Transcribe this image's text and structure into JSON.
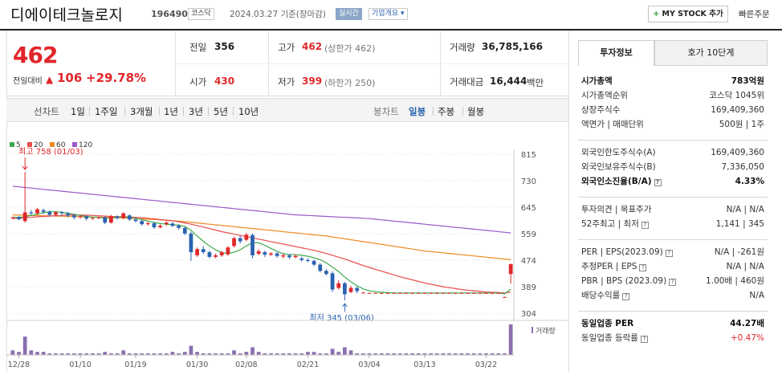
{
  "header": {
    "stock_name": "디에이테크놀로지",
    "stock_code": "196490",
    "market": "코스닥",
    "date": "2024.03.27 기준(장마감)",
    "realtime_label": "실시간",
    "company_overview_label": "기업개요",
    "mystock_label": "MY STOCK 추가",
    "quick_order_label": "빠른주문"
  },
  "price": {
    "current": "462",
    "change_label": "전일대비",
    "change_amount": "106",
    "change_rate": "+29.78%"
  },
  "quotes": {
    "prev_close_label": "전일",
    "prev_close": "356",
    "high_label": "고가",
    "high": "462",
    "high_note": "(상한가 462)",
    "volume_label": "거래량",
    "volume": "36,785,166",
    "open_label": "시가",
    "open": "430",
    "low_label": "저가",
    "low": "399",
    "low_note": "(하한가 250)",
    "amount_label": "거래대금",
    "amount": "16,444",
    "amount_unit": "백만"
  },
  "period_tabs": {
    "line_chart": "선차트",
    "items": [
      "1일",
      "1주일",
      "3개월",
      "1년",
      "3년",
      "5년",
      "10년"
    ],
    "candle_chart": "봉차트",
    "candle_items": [
      "일봉",
      "주봉",
      "월봉"
    ],
    "active_candle": "일봉"
  },
  "chart_data": {
    "type": "candlestick",
    "legend": [
      "5",
      "20",
      "60",
      "120"
    ],
    "legend_colors": [
      "#3aa84a",
      "#e84c4c",
      "#f08a24",
      "#9b59c6"
    ],
    "y_ticks": [
      815,
      730,
      645,
      559,
      474,
      389,
      304
    ],
    "ylim": [
      304,
      815
    ],
    "x_ticks": [
      "12/28",
      "01/10",
      "01/19",
      "01/30",
      "02/08",
      "02/21",
      "03/04",
      "03/13",
      "03/22"
    ],
    "high_annotation": "최고 758 (01/03)",
    "low_annotation": "최저 345 (03/06)",
    "volume_label": "거래량",
    "candles": [
      {
        "o": 610,
        "c": 612,
        "h": 614,
        "l": 605
      },
      {
        "o": 612,
        "c": 606,
        "h": 616,
        "l": 603
      },
      {
        "o": 600,
        "c": 628,
        "h": 758,
        "l": 595
      },
      {
        "o": 628,
        "c": 625,
        "h": 635,
        "l": 618
      },
      {
        "o": 625,
        "c": 638,
        "h": 642,
        "l": 620
      },
      {
        "o": 635,
        "c": 630,
        "h": 640,
        "l": 622
      },
      {
        "o": 630,
        "c": 620,
        "h": 634,
        "l": 615
      },
      {
        "o": 620,
        "c": 628,
        "h": 632,
        "l": 615
      },
      {
        "o": 628,
        "c": 625,
        "h": 633,
        "l": 618
      },
      {
        "o": 625,
        "c": 618,
        "h": 630,
        "l": 612
      },
      {
        "o": 618,
        "c": 612,
        "h": 622,
        "l": 605
      },
      {
        "o": 612,
        "c": 615,
        "h": 620,
        "l": 608
      },
      {
        "o": 615,
        "c": 608,
        "h": 618,
        "l": 602
      },
      {
        "o": 608,
        "c": 610,
        "h": 613,
        "l": 604
      },
      {
        "o": 610,
        "c": 612,
        "h": 615,
        "l": 606
      },
      {
        "o": 612,
        "c": 595,
        "h": 616,
        "l": 590
      },
      {
        "o": 595,
        "c": 615,
        "h": 620,
        "l": 592
      },
      {
        "o": 615,
        "c": 610,
        "h": 618,
        "l": 605
      },
      {
        "o": 610,
        "c": 625,
        "h": 628,
        "l": 605
      },
      {
        "o": 618,
        "c": 605,
        "h": 622,
        "l": 600
      },
      {
        "o": 605,
        "c": 600,
        "h": 610,
        "l": 596
      },
      {
        "o": 600,
        "c": 590,
        "h": 604,
        "l": 585
      },
      {
        "o": 590,
        "c": 593,
        "h": 598,
        "l": 585
      },
      {
        "o": 593,
        "c": 580,
        "h": 597,
        "l": 575
      },
      {
        "o": 580,
        "c": 585,
        "h": 590,
        "l": 576
      },
      {
        "o": 590,
        "c": 595,
        "h": 600,
        "l": 585
      },
      {
        "o": 592,
        "c": 585,
        "h": 597,
        "l": 580
      },
      {
        "o": 585,
        "c": 578,
        "h": 590,
        "l": 572
      },
      {
        "o": 578,
        "c": 560,
        "h": 582,
        "l": 555
      },
      {
        "o": 560,
        "c": 500,
        "h": 565,
        "l": 472
      },
      {
        "o": 490,
        "c": 510,
        "h": 515,
        "l": 485
      },
      {
        "o": 510,
        "c": 500,
        "h": 520,
        "l": 495
      },
      {
        "o": 500,
        "c": 485,
        "h": 505,
        "l": 480
      },
      {
        "o": 485,
        "c": 490,
        "h": 495,
        "l": 480
      },
      {
        "o": 490,
        "c": 500,
        "h": 505,
        "l": 485
      },
      {
        "o": 493,
        "c": 515,
        "h": 520,
        "l": 488
      },
      {
        "o": 520,
        "c": 545,
        "h": 550,
        "l": 515
      },
      {
        "o": 545,
        "c": 535,
        "h": 552,
        "l": 528
      },
      {
        "o": 540,
        "c": 556,
        "h": 562,
        "l": 535
      },
      {
        "o": 555,
        "c": 490,
        "h": 560,
        "l": 480
      },
      {
        "o": 495,
        "c": 503,
        "h": 510,
        "l": 490
      },
      {
        "o": 500,
        "c": 492,
        "h": 505,
        "l": 485
      },
      {
        "o": 492,
        "c": 496,
        "h": 500,
        "l": 488
      },
      {
        "o": 496,
        "c": 488,
        "h": 500,
        "l": 482
      },
      {
        "o": 486,
        "c": 490,
        "h": 495,
        "l": 480
      },
      {
        "o": 490,
        "c": 484,
        "h": 494,
        "l": 478
      },
      {
        "o": 484,
        "c": 488,
        "h": 492,
        "l": 480
      },
      {
        "o": 480,
        "c": 475,
        "h": 486,
        "l": 470
      },
      {
        "o": 475,
        "c": 472,
        "h": 480,
        "l": 468
      },
      {
        "o": 472,
        "c": 460,
        "h": 476,
        "l": 455
      },
      {
        "o": 460,
        "c": 440,
        "h": 465,
        "l": 435
      },
      {
        "o": 440,
        "c": 430,
        "h": 445,
        "l": 425
      },
      {
        "o": 432,
        "c": 380,
        "h": 438,
        "l": 372
      },
      {
        "o": 385,
        "c": 400,
        "h": 410,
        "l": 380
      },
      {
        "o": 400,
        "c": 365,
        "h": 405,
        "l": 345
      },
      {
        "o": 372,
        "c": 385,
        "h": 392,
        "l": 368
      },
      {
        "o": 385,
        "c": 375,
        "h": 390,
        "l": 368
      },
      {
        "o": 370,
        "c": 370,
        "h": 372,
        "l": 368
      },
      {
        "o": 369,
        "c": 369,
        "h": 370,
        "l": 368
      },
      {
        "o": 369,
        "c": 369,
        "h": 370,
        "l": 368
      },
      {
        "o": 369,
        "c": 369,
        "h": 370,
        "l": 368
      },
      {
        "o": 369,
        "c": 369,
        "h": 370,
        "l": 368
      },
      {
        "o": 369,
        "c": 369,
        "h": 370,
        "l": 368
      },
      {
        "o": 369,
        "c": 369,
        "h": 370,
        "l": 368
      },
      {
        "o": 369,
        "c": 369,
        "h": 370,
        "l": 368
      },
      {
        "o": 369,
        "c": 369,
        "h": 370,
        "l": 368
      },
      {
        "o": 369,
        "c": 369,
        "h": 370,
        "l": 368
      },
      {
        "o": 369,
        "c": 369,
        "h": 370,
        "l": 368
      },
      {
        "o": 369,
        "c": 369,
        "h": 370,
        "l": 368
      },
      {
        "o": 369,
        "c": 369,
        "h": 370,
        "l": 368
      },
      {
        "o": 369,
        "c": 369,
        "h": 370,
        "l": 368
      },
      {
        "o": 369,
        "c": 369,
        "h": 370,
        "l": 368
      },
      {
        "o": 369,
        "c": 369,
        "h": 370,
        "l": 368
      },
      {
        "o": 369,
        "c": 369,
        "h": 370,
        "l": 368
      },
      {
        "o": 369,
        "c": 369,
        "h": 370,
        "l": 368
      },
      {
        "o": 369,
        "c": 369,
        "h": 370,
        "l": 368
      },
      {
        "o": 369,
        "c": 369,
        "h": 370,
        "l": 368
      },
      {
        "o": 369,
        "c": 369,
        "h": 370,
        "l": 368
      },
      {
        "o": 369,
        "c": 369,
        "h": 370,
        "l": 368
      },
      {
        "o": 369,
        "c": 369,
        "h": 370,
        "l": 368
      },
      {
        "o": 356,
        "c": 356,
        "h": 357,
        "l": 355
      },
      {
        "o": 430,
        "c": 462,
        "h": 462,
        "l": 399
      }
    ],
    "ma5": [
      612,
      612,
      614,
      618,
      622,
      627,
      630,
      630,
      628,
      625,
      622,
      618,
      615,
      613,
      612,
      609,
      610,
      611,
      613,
      612,
      609,
      605,
      600,
      596,
      592,
      590,
      588,
      587,
      583,
      570,
      552,
      535,
      520,
      508,
      498,
      496,
      500,
      508,
      520,
      530,
      530,
      522,
      512,
      503,
      495,
      493,
      492,
      490,
      487,
      482,
      476,
      466,
      452,
      438,
      420,
      405,
      392,
      382,
      376,
      373,
      371,
      370,
      369,
      369,
      369,
      369,
      369,
      369,
      369,
      369,
      369,
      369,
      369,
      369,
      369,
      369,
      369,
      369,
      369,
      369,
      366,
      382
    ],
    "ma20": [
      608,
      609,
      611,
      612,
      614,
      615,
      616,
      617,
      618,
      619,
      620,
      619,
      619,
      618,
      617,
      616,
      615,
      614,
      614,
      613,
      612,
      611,
      609,
      607,
      605,
      603,
      601,
      598,
      594,
      590,
      585,
      581,
      576,
      571,
      566,
      562,
      558,
      554,
      550,
      546,
      542,
      538,
      534,
      530,
      526,
      522,
      518,
      514,
      510,
      506,
      501,
      496,
      490,
      484,
      478,
      471,
      464,
      457,
      451,
      445,
      439,
      433,
      427,
      421,
      416,
      411,
      406,
      401,
      397,
      393,
      389,
      386,
      383,
      380,
      378,
      376,
      374,
      372,
      371,
      370,
      369,
      372
    ],
    "ma60": [
      620,
      619,
      619,
      618,
      618,
      617,
      617,
      616,
      616,
      615,
      615,
      614,
      614,
      613,
      613,
      612,
      612,
      611,
      610,
      609,
      608,
      607,
      606,
      605,
      604,
      603,
      601,
      600,
      598,
      596,
      594,
      592,
      590,
      588,
      586,
      584,
      582,
      580,
      578,
      576,
      574,
      572,
      570,
      568,
      566,
      564,
      562,
      560,
      558,
      556,
      554,
      552,
      549,
      546,
      543,
      540,
      537,
      534,
      531,
      528,
      525,
      522,
      519,
      516,
      513,
      510,
      507,
      504,
      502,
      500,
      498,
      496,
      494,
      492,
      490,
      488,
      486,
      484,
      482,
      480,
      478,
      476
    ],
    "ma120": [
      712,
      710,
      708,
      706,
      704,
      702,
      700,
      698,
      696,
      694,
      692,
      690,
      688,
      686,
      684,
      682,
      680,
      678,
      676,
      674,
      672,
      670,
      668,
      666,
      664,
      662,
      660,
      658,
      656,
      654,
      652,
      650,
      648,
      646,
      644,
      642,
      640,
      638,
      636,
      634,
      632,
      630,
      628,
      626,
      624,
      622,
      620,
      619,
      618,
      617,
      616,
      615,
      614,
      613,
      612,
      611,
      610,
      609,
      608,
      606,
      604,
      602,
      600,
      598,
      596,
      594,
      592,
      590,
      588,
      586,
      584,
      582,
      580,
      578,
      576,
      574,
      572,
      570,
      568,
      566,
      564,
      562
    ],
    "volumes": [
      3,
      2,
      12,
      3,
      2,
      2,
      1,
      1,
      1,
      1,
      1,
      1,
      1,
      1,
      1,
      2,
      1,
      1,
      3,
      1,
      1,
      1,
      1,
      1,
      1,
      1,
      2,
      1,
      2,
      6,
      2,
      1,
      1,
      1,
      1,
      1,
      3,
      1,
      2,
      5,
      2,
      1,
      1,
      1,
      1,
      1,
      1,
      1,
      2,
      2,
      1,
      1,
      4,
      2,
      5,
      3,
      1,
      1,
      1,
      1,
      1,
      1,
      1,
      1,
      1,
      1,
      1,
      1,
      1,
      1,
      1,
      1,
      1,
      1,
      1,
      1,
      1,
      1,
      1,
      1,
      1,
      20
    ]
  },
  "invest_tabs": {
    "invest_info": "투자정보",
    "hoga": "호가 10단계"
  },
  "invest_info": {
    "group1": [
      {
        "label": "시가총액",
        "value": "783억원",
        "bold": true
      },
      {
        "label": "시가총액순위",
        "value": "코스닥 1045위"
      },
      {
        "label": "상장주식수",
        "value": "169,409,360"
      },
      {
        "label": "액면가 | 매매단위",
        "value": "500원 | 1주"
      }
    ],
    "group2": [
      {
        "label": "외국인한도주식수(A)",
        "value": "169,409,360"
      },
      {
        "label": "외국인보유주식수(B)",
        "value": "7,336,050"
      },
      {
        "label": "외국인소진율(B/A)",
        "value": "4.33%",
        "bold": true
      }
    ],
    "group3": [
      {
        "label": "투자의견 | 목표주가",
        "value": "N/A | N/A"
      },
      {
        "label": "52주최고 | 최저",
        "value": "1,141 | 345"
      }
    ],
    "group4": [
      {
        "label": "PER | EPS(2023.09)",
        "value": "N/A | -261원"
      },
      {
        "label": "추정PER | EPS",
        "value": "N/A | N/A"
      },
      {
        "label": "PBR | BPS (2023.09)",
        "value": "1.00배 | 460원"
      },
      {
        "label": "배당수익률",
        "value": "N/A"
      }
    ],
    "group5": [
      {
        "label": "동일업종 PER",
        "value": "44.27배",
        "bold": true
      },
      {
        "label": "동일업종 등락률",
        "value": "+0.47%",
        "red": true
      }
    ]
  },
  "colors": {
    "up": "#e0262a",
    "down": "#2a62b0",
    "accent": "#2a62b0"
  }
}
